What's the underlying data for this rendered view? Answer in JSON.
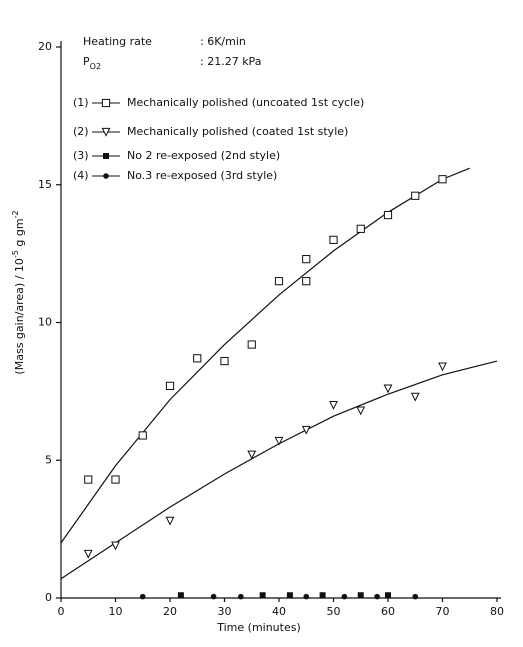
{
  "chart_data": {
    "type": "scatter",
    "xlabel": "Time (minutes)",
    "ylabel_parts": [
      "(Mass gain/area) / 10",
      "-5",
      " g gm",
      "-2"
    ],
    "annotations": [
      {
        "label": "Heating rate",
        "value": ": 6K/min"
      },
      {
        "label": "P",
        "subscript": "O2",
        "value": ": 21.27 kPa"
      }
    ],
    "xlim": [
      0,
      80
    ],
    "xticks": [
      0,
      10,
      20,
      30,
      40,
      50,
      60,
      70,
      80
    ],
    "ylim": [
      0,
      20
    ],
    "yticks": [
      0,
      5,
      10,
      15,
      20
    ],
    "series": [
      {
        "index_label": "(1)",
        "name": "Mechanically polished (uncoated 1st cycle)",
        "marker": "open-square",
        "color": "#111111",
        "x": [
          5,
          10,
          15,
          20,
          25,
          30,
          35,
          40,
          45,
          45,
          50,
          55,
          60,
          65,
          70
        ],
        "values": [
          4.3,
          4.3,
          5.9,
          7.7,
          8.7,
          8.6,
          9.2,
          11.5,
          11.5,
          12.3,
          13.0,
          13.4,
          13.9,
          14.6,
          15.2
        ]
      },
      {
        "index_label": "(2)",
        "name": "Mechanically polished (coated 1st style)",
        "marker": "open-triangle-down",
        "color": "#111111",
        "x": [
          5,
          10,
          20,
          35,
          40,
          45,
          50,
          55,
          60,
          65,
          70
        ],
        "values": [
          1.6,
          1.9,
          2.8,
          5.2,
          5.7,
          6.1,
          7.0,
          6.8,
          7.6,
          7.3,
          8.4
        ]
      },
      {
        "index_label": "(3)",
        "name": "No 2 re-exposed (2nd style)",
        "marker": "filled-square",
        "color": "#111111",
        "x": [
          22,
          37,
          42,
          48,
          55,
          60
        ],
        "values": [
          0.1,
          0.1,
          0.1,
          0.1,
          0.1,
          0.1
        ]
      },
      {
        "index_label": "(4)",
        "name": "No.3 re-exposed (3rd style)",
        "marker": "filled-circle",
        "color": "#111111",
        "x": [
          15,
          28,
          33,
          45,
          52,
          58,
          65
        ],
        "values": [
          0.05,
          0.05,
          0.05,
          0.05,
          0.05,
          0.05,
          0.05
        ]
      }
    ],
    "fits": [
      {
        "x": [
          0,
          10,
          20,
          30,
          40,
          50,
          60,
          70,
          75
        ],
        "values": [
          2.0,
          4.8,
          7.2,
          9.2,
          11.0,
          12.6,
          14.0,
          15.2,
          15.6
        ]
      },
      {
        "x": [
          0,
          10,
          20,
          30,
          40,
          50,
          60,
          70,
          80
        ],
        "values": [
          0.7,
          2.0,
          3.3,
          4.5,
          5.6,
          6.6,
          7.4,
          8.1,
          8.6
        ]
      }
    ]
  }
}
